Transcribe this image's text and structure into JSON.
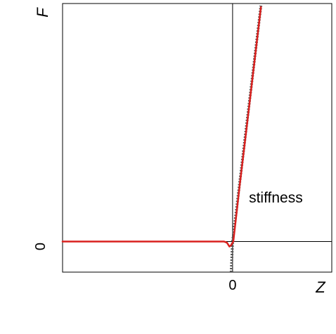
{
  "chart_data": {
    "type": "line",
    "title": "",
    "xlabel": "Z",
    "ylabel": "F",
    "x_ticks": [
      {
        "value": 0,
        "label": "0"
      }
    ],
    "y_ticks": [
      {
        "value": 0,
        "label": "0"
      }
    ],
    "xlim": [
      -24,
      14
    ],
    "ylim": [
      -4.3,
      33.5
    ],
    "grid": false,
    "legend": "none",
    "annotations": [
      {
        "text": "stiffness",
        "x": 2.3,
        "y": 5.5
      }
    ],
    "series": [
      {
        "name": "",
        "style": "dotted",
        "color": "#555555",
        "x": [
          -0.2,
          0.0,
          1.0,
          2.0,
          3.0,
          4.0
        ],
        "y": [
          -4.3,
          0.0,
          8.3,
          16.6,
          24.9,
          33.2
        ]
      },
      {
        "name": "",
        "style": "solid",
        "color": "#d9201e",
        "x": [
          -24.0,
          -15.0,
          -5.0,
          -1.2,
          -0.8,
          -0.45,
          -0.2,
          0.0,
          0.1,
          1.0,
          2.0,
          3.0,
          4.0
        ],
        "y": [
          0.0,
          0.0,
          0.0,
          0.0,
          -0.15,
          -0.7,
          -0.5,
          -0.15,
          0.0,
          7.9,
          16.2,
          24.6,
          33.0
        ]
      }
    ]
  }
}
